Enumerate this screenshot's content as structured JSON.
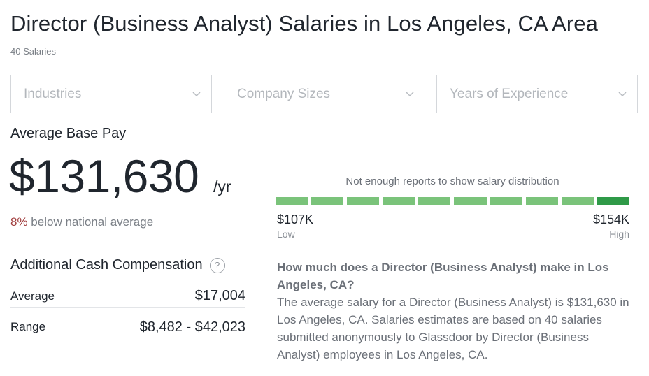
{
  "header": {
    "title": "Director (Business Analyst) Salaries in Los Angeles, CA Area",
    "subtitle": "40 Salaries"
  },
  "filters": [
    {
      "placeholder": "Industries",
      "icon": "chevron-down-icon"
    },
    {
      "placeholder": "Company Sizes",
      "icon": "chevron-down-icon"
    },
    {
      "placeholder": "Years of Experience",
      "icon": "chevron-down-icon"
    }
  ],
  "base_pay": {
    "label": "Average Base Pay",
    "amount": "$131,630",
    "unit": "/yr",
    "comparison_pct": "8%",
    "comparison_text": " below national average"
  },
  "distribution": {
    "note": "Not enough reports to show salary distribution",
    "segments": 10,
    "colors": {
      "segment": "#7ac37a",
      "highlight": "#2f9a48"
    },
    "low_value": "$107K",
    "low_label": "Low",
    "high_value": "$154K",
    "high_label": "High"
  },
  "additional_comp": {
    "title": "Additional Cash Compensation",
    "help_icon": "question-icon",
    "help_glyph": "?",
    "average_label": "Average",
    "average_value": "$17,004",
    "range_label": "Range",
    "range_value": "$8,482 - $42,023"
  },
  "faq": {
    "question": "How much does a Director (Business Analyst) make in Los Angeles, CA?",
    "answer": "The average salary for a Director (Business Analyst) is $131,630 in Los Angeles, CA. Salaries estimates are based on 40 salaries submitted anonymously to Glassdoor by Director (Business Analyst) employees in Los Angeles, CA."
  }
}
